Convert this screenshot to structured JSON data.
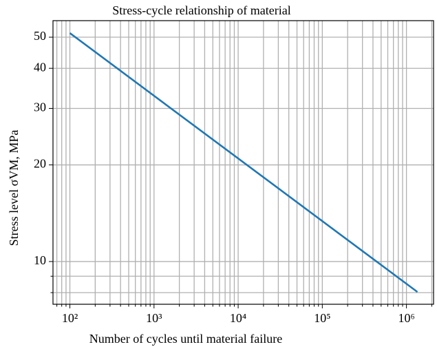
{
  "chart_data": {
    "type": "line",
    "title": "Stress-cycle relationship of material",
    "x_label": "Number of cycles until material failure",
    "y_label": "Stress level σVM, MPa",
    "x": [
      100,
      1350000
    ],
    "series": [
      {
        "color": "#1f77b4",
        "values": [
          51.5,
          8.04
        ]
      }
    ],
    "xscale": "log",
    "yscale": "log",
    "grid": true,
    "xlim": [
      63,
      2100000
    ],
    "ylim": [
      7.36,
      56.3
    ],
    "xticks": [
      {
        "value": 100,
        "label": "10²"
      },
      {
        "value": 1000,
        "label": "10³"
      },
      {
        "value": 10000,
        "label": "10⁴"
      },
      {
        "value": 100000,
        "label": "10⁵"
      },
      {
        "value": 1000000,
        "label": "10⁶"
      }
    ],
    "xminor_ticks": [
      70,
      80,
      90,
      200,
      300,
      400,
      500,
      600,
      700,
      800,
      900,
      2000,
      3000,
      4000,
      5000,
      6000,
      7000,
      8000,
      9000,
      20000,
      30000,
      40000,
      50000,
      60000,
      70000,
      80000,
      90000,
      200000,
      300000,
      400000,
      500000,
      600000,
      700000,
      800000,
      900000,
      2000000
    ],
    "yticks": [
      10,
      20,
      30,
      40,
      50
    ],
    "yminor_ticks": [
      8,
      9
    ]
  }
}
